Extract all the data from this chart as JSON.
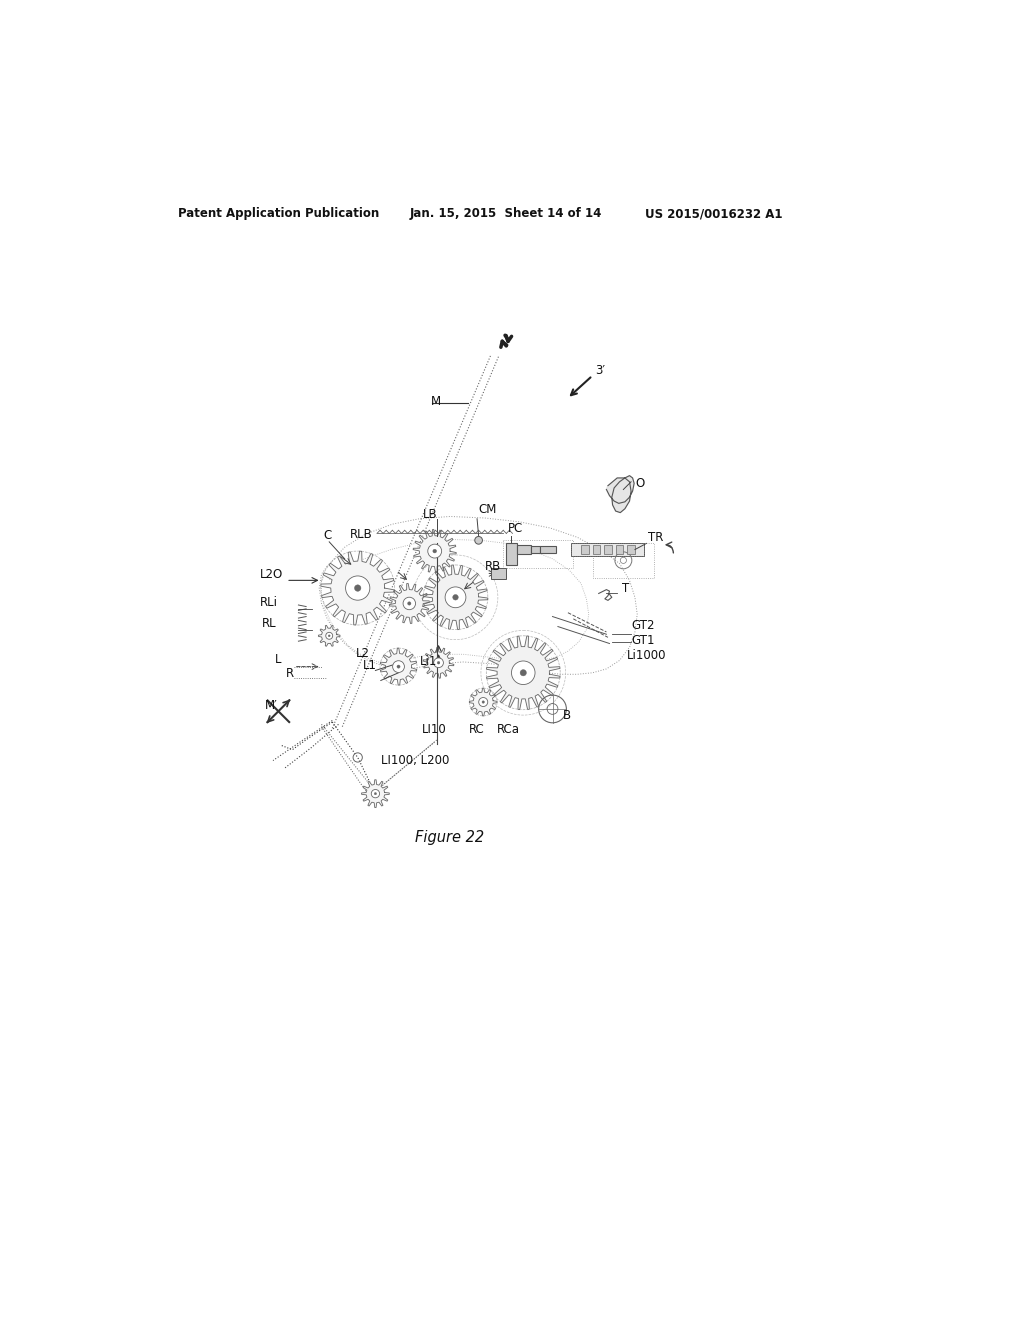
{
  "header_left": "Patent Application Publication",
  "header_center": "Jan. 15, 2015  Sheet 14 of 14",
  "header_right": "US 2015/0016232 A1",
  "figure_caption": "Figure 22",
  "bg_color": "#ffffff",
  "line_color": "#555555",
  "light_color": "#888888",
  "dark_color": "#222222"
}
